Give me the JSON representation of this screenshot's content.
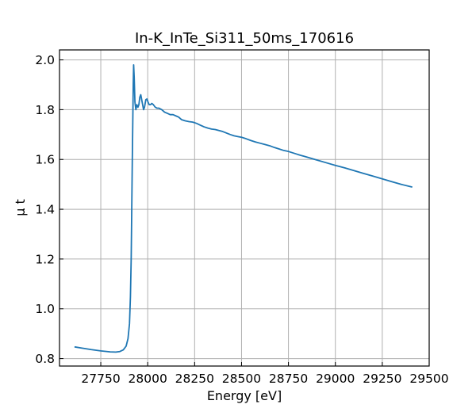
{
  "chart_data": {
    "type": "line",
    "title": "In-K_InTe_Si311_50ms_170616",
    "xlabel": "Energy [eV]",
    "ylabel": "μ t",
    "xlim": [
      27530,
      29500
    ],
    "ylim": [
      0.77,
      2.04
    ],
    "xticks": [
      27750,
      28000,
      28250,
      28500,
      28750,
      29000,
      29250,
      29500
    ],
    "yticks": [
      0.8,
      1.0,
      1.2,
      1.4,
      1.6,
      1.8,
      2.0
    ],
    "grid": true,
    "series": [
      {
        "color": "#1f77b4",
        "x": [
          27610,
          27650,
          27700,
          27750,
          27800,
          27830,
          27850,
          27870,
          27885,
          27895,
          27903,
          27908,
          27912,
          27915,
          27918,
          27921,
          27923,
          27925,
          27928,
          27932,
          27937,
          27942,
          27948,
          27953,
          27958,
          27963,
          27968,
          27973,
          27978,
          27983,
          27990,
          27996,
          28002,
          28008,
          28015,
          28022,
          28030,
          28040,
          28050,
          28060,
          28075,
          28090,
          28105,
          28120,
          28135,
          28150,
          28165,
          28180,
          28200,
          28220,
          28240,
          28260,
          28280,
          28300,
          28320,
          28340,
          28360,
          28380,
          28400,
          28420,
          28440,
          28460,
          28480,
          28500,
          28525,
          28550,
          28575,
          28600,
          28625,
          28650,
          28675,
          28700,
          28725,
          28750,
          28775,
          28800,
          28850,
          28900,
          28950,
          29000,
          29050,
          29100,
          29150,
          29200,
          29250,
          29300,
          29350,
          29410
        ],
        "y": [
          0.847,
          0.842,
          0.836,
          0.831,
          0.827,
          0.826,
          0.828,
          0.835,
          0.85,
          0.88,
          0.94,
          1.05,
          1.2,
          1.4,
          1.6,
          1.78,
          1.9,
          1.98,
          1.93,
          1.83,
          1.8,
          1.82,
          1.81,
          1.82,
          1.85,
          1.86,
          1.84,
          1.82,
          1.8,
          1.81,
          1.84,
          1.843,
          1.83,
          1.82,
          1.82,
          1.825,
          1.82,
          1.81,
          1.806,
          1.806,
          1.8,
          1.79,
          1.785,
          1.78,
          1.78,
          1.775,
          1.77,
          1.76,
          1.755,
          1.752,
          1.75,
          1.745,
          1.738,
          1.731,
          1.726,
          1.722,
          1.72,
          1.716,
          1.712,
          1.706,
          1.7,
          1.695,
          1.692,
          1.689,
          1.683,
          1.676,
          1.67,
          1.665,
          1.66,
          1.655,
          1.648,
          1.642,
          1.636,
          1.632,
          1.626,
          1.62,
          1.609,
          1.598,
          1.587,
          1.576,
          1.566,
          1.555,
          1.544,
          1.533,
          1.522,
          1.511,
          1.5,
          1.489
        ]
      }
    ]
  }
}
